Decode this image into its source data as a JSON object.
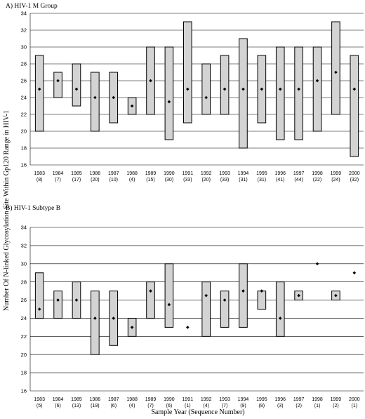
{
  "figure": {
    "ylabel": "Number Of N-linked Glycosylation  Site Within Gp120 Range in HIV-1",
    "xlabel": "Sample Year (Sequence Number)"
  },
  "chart_data": [
    {
      "type": "range-bar",
      "title": "A) HIV-1 M Group",
      "ylim": [
        16,
        34
      ],
      "yticks": [
        16,
        18,
        20,
        22,
        24,
        26,
        28,
        30,
        32,
        34
      ],
      "grid": true,
      "categories": [
        "1983",
        "1984",
        "1985",
        "1986",
        "1987",
        "1988",
        "1989",
        "1990",
        "1991",
        "1992",
        "1993",
        "1994",
        "1995",
        "1996",
        "1997",
        "1998",
        "1999",
        "2000"
      ],
      "counts": [
        "(8)",
        "(7)",
        "(17)",
        "(20)",
        "(10)",
        "(4)",
        "(15)",
        "(30)",
        "(33)",
        "(20)",
        "(33)",
        "(31)",
        "(31)",
        "(41)",
        "(44)",
        "(22)",
        "(24)",
        "(32)"
      ],
      "min": [
        20,
        24,
        23,
        20,
        21,
        22,
        22,
        19,
        21,
        22,
        22,
        18,
        21,
        19,
        19,
        20,
        22,
        17
      ],
      "max": [
        29,
        27,
        28,
        27,
        27,
        24,
        30,
        30,
        33,
        28,
        29,
        31,
        29,
        30,
        30,
        30,
        33,
        29
      ],
      "mean": [
        25,
        26,
        25,
        24,
        24,
        23,
        26,
        23.5,
        25,
        24,
        25,
        25,
        25,
        25,
        25,
        26,
        27,
        25
      ]
    },
    {
      "type": "range-bar",
      "title": "B) HIV-1 Subtype B",
      "ylim": [
        16,
        34
      ],
      "yticks": [
        16,
        18,
        20,
        22,
        24,
        26,
        28,
        30,
        32,
        34
      ],
      "grid": true,
      "categories": [
        "1983",
        "1984",
        "1985",
        "1986",
        "1987",
        "1988",
        "1989",
        "1990",
        "1991",
        "1992",
        "1993",
        "1994",
        "1995",
        "1996",
        "1997",
        "1998",
        "1999",
        "2000"
      ],
      "counts": [
        "(5)",
        "(6)",
        "(13)",
        "(19)",
        "(6)",
        "(4)",
        "(7)",
        "(6)",
        "(1)",
        "(4)",
        "(7)",
        "(9)",
        "(8)",
        "(3)",
        "(2)",
        "(1)",
        "(2)",
        "(1)"
      ],
      "min": [
        24,
        24,
        24,
        20,
        21,
        22,
        24,
        23,
        23,
        22,
        23,
        23,
        25,
        22,
        26,
        30,
        26,
        29
      ],
      "max": [
        29,
        27,
        28,
        27,
        27,
        24,
        28,
        30,
        23,
        28,
        27,
        30,
        27,
        28,
        27,
        30,
        27,
        29
      ],
      "mean": [
        25,
        26,
        26,
        24,
        24,
        23,
        27,
        25.5,
        23,
        26.5,
        26,
        27,
        27,
        24,
        26.5,
        30,
        26.5,
        29
      ]
    }
  ]
}
